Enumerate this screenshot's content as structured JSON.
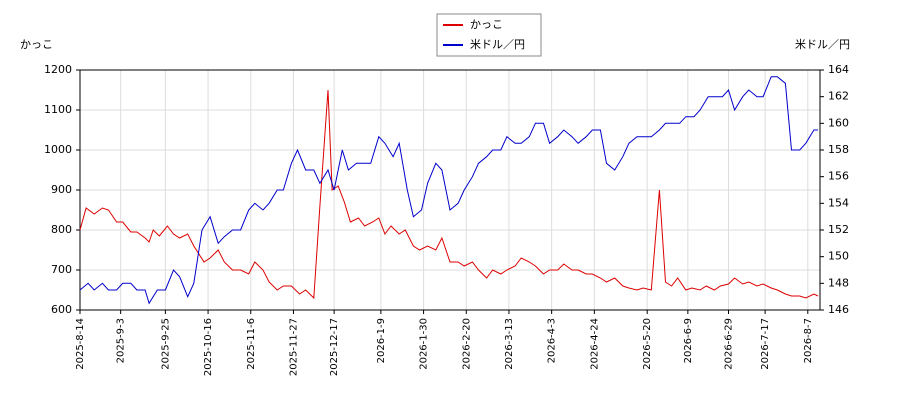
{
  "chart_data": {
    "type": "line",
    "ylabel": "かっこ",
    "y2label": "米ドル／円",
    "xlim": [
      "2025-8-14",
      "2026-8-13"
    ],
    "xticks": [
      "2025-8-14",
      "2025-9-3",
      "2025-9-25",
      "2025-10-16",
      "2025-11-6",
      "2025-11-27",
      "2025-12-17",
      "2026-1-9",
      "2026-1-30",
      "2026-2-20",
      "2026-3-13",
      "2026-4-3",
      "2026-4-24",
      "2026-5-20",
      "2026-6-9",
      "2026-6-29",
      "2026-7-17",
      "2026-8-7"
    ],
    "ylim": [
      600,
      1200
    ],
    "yticks": [
      600,
      700,
      800,
      900,
      1000,
      1100,
      1200
    ],
    "y2lim": [
      146,
      164
    ],
    "y2ticks": [
      146,
      148,
      150,
      152,
      154,
      156,
      158,
      160,
      162,
      164
    ],
    "grid": true,
    "legend": "top",
    "series": [
      {
        "name": "かっこ",
        "color": "#dd0000",
        "x": [
          "2025-8-14",
          "2025-8-17",
          "2025-8-21",
          "2025-8-25",
          "2025-8-28",
          "2025-9-1",
          "2025-9-4",
          "2025-9-8",
          "2025-9-11",
          "2025-9-15",
          "2025-9-17",
          "2025-9-19",
          "2025-9-22",
          "2025-9-26",
          "2025-9-29",
          "2025-10-2",
          "2025-10-6",
          "2025-10-9",
          "2025-10-14",
          "2025-10-17",
          "2025-10-21",
          "2025-10-24",
          "2025-10-28",
          "2025-11-1",
          "2025-11-5",
          "2025-11-8",
          "2025-11-12",
          "2025-11-15",
          "2025-11-19",
          "2025-11-22",
          "2025-11-26",
          "2025-11-30",
          "2025-12-3",
          "2025-12-7",
          "2025-12-10",
          "2025-12-14",
          "2025-12-16",
          "2025-12-19",
          "2025-12-22",
          "2025-12-25",
          "2025-12-29",
          "2026-1-1",
          "2026-1-5",
          "2026-1-8",
          "2026-1-11",
          "2026-1-14",
          "2026-1-18",
          "2026-1-21",
          "2026-1-25",
          "2026-1-28",
          "2026-2-1",
          "2026-2-5",
          "2026-2-8",
          "2026-2-12",
          "2026-2-16",
          "2026-2-19",
          "2026-2-23",
          "2026-2-26",
          "2026-3-2",
          "2026-3-5",
          "2026-3-9",
          "2026-3-12",
          "2026-3-16",
          "2026-3-19",
          "2026-3-23",
          "2026-3-26",
          "2026-3-30",
          "2026-4-2",
          "2026-4-6",
          "2026-4-9",
          "2026-4-13",
          "2026-4-16",
          "2026-4-20",
          "2026-4-23",
          "2026-4-27",
          "2026-4-30",
          "2026-5-4",
          "2026-5-8",
          "2026-5-11",
          "2026-5-15",
          "2026-5-18",
          "2026-5-22",
          "2026-5-26",
          "2026-5-29",
          "2026-6-1",
          "2026-6-4",
          "2026-6-8",
          "2026-6-11",
          "2026-6-15",
          "2026-6-18",
          "2026-6-22",
          "2026-6-25",
          "2026-6-29",
          "2026-7-2",
          "2026-7-6",
          "2026-7-9",
          "2026-7-13",
          "2026-7-16",
          "2026-7-20",
          "2026-7-23",
          "2026-7-27",
          "2026-7-30",
          "2026-8-3",
          "2026-8-6",
          "2026-8-10",
          "2026-8-12"
        ],
        "values": [
          800,
          855,
          840,
          855,
          850,
          820,
          820,
          795,
          795,
          780,
          770,
          800,
          785,
          810,
          790,
          780,
          790,
          760,
          720,
          730,
          750,
          720,
          700,
          700,
          690,
          720,
          700,
          670,
          650,
          660,
          660,
          640,
          650,
          630,
          860,
          1150,
          900,
          910,
          870,
          820,
          830,
          810,
          820,
          830,
          790,
          810,
          790,
          800,
          760,
          750,
          760,
          750,
          780,
          720,
          720,
          710,
          720,
          700,
          680,
          700,
          690,
          700,
          710,
          730,
          720,
          710,
          690,
          700,
          700,
          715,
          700,
          700,
          690,
          690,
          680,
          670,
          680,
          660,
          655,
          650,
          655,
          650,
          900,
          670,
          660,
          680,
          650,
          655,
          650,
          660,
          650,
          660,
          665,
          680,
          665,
          670,
          660,
          665,
          655,
          650,
          640,
          635,
          635,
          630,
          640,
          635
        ]
      },
      {
        "name": "米ドル／円",
        "color": "#0000cc",
        "axis": "y2",
        "x": [
          "2025-8-14",
          "2025-8-18",
          "2025-8-21",
          "2025-8-25",
          "2025-8-28",
          "2025-9-1",
          "2025-9-4",
          "2025-9-8",
          "2025-9-11",
          "2025-9-15",
          "2025-9-17",
          "2025-9-21",
          "2025-9-25",
          "2025-9-29",
          "2025-10-2",
          "2025-10-6",
          "2025-10-9",
          "2025-10-13",
          "2025-10-17",
          "2025-10-21",
          "2025-10-24",
          "2025-10-28",
          "2025-11-1",
          "2025-11-5",
          "2025-11-8",
          "2025-11-12",
          "2025-11-15",
          "2025-11-19",
          "2025-11-22",
          "2025-11-26",
          "2025-11-29",
          "2025-12-3",
          "2025-12-7",
          "2025-12-10",
          "2025-12-14",
          "2025-12-17",
          "2025-12-21",
          "2025-12-24",
          "2025-12-28",
          "2025-12-31",
          "2026-1-4",
          "2026-1-8",
          "2026-1-11",
          "2026-1-15",
          "2026-1-18",
          "2026-1-22",
          "2026-1-25",
          "2026-1-29",
          "2026-2-1",
          "2026-2-5",
          "2026-2-8",
          "2026-2-12",
          "2026-2-16",
          "2026-2-19",
          "2026-2-23",
          "2026-2-26",
          "2026-3-2",
          "2026-3-5",
          "2026-3-9",
          "2026-3-12",
          "2026-3-16",
          "2026-3-19",
          "2026-3-23",
          "2026-3-26",
          "2026-3-30",
          "2026-4-2",
          "2026-4-6",
          "2026-4-9",
          "2026-4-13",
          "2026-4-16",
          "2026-4-20",
          "2026-4-23",
          "2026-4-27",
          "2026-4-30",
          "2026-5-4",
          "2026-5-8",
          "2026-5-11",
          "2026-5-15",
          "2026-5-18",
          "2026-5-22",
          "2026-5-26",
          "2026-5-29",
          "2026-6-1",
          "2026-6-5",
          "2026-6-8",
          "2026-6-12",
          "2026-6-15",
          "2026-6-19",
          "2026-6-22",
          "2026-6-26",
          "2026-6-29",
          "2026-7-2",
          "2026-7-6",
          "2026-7-9",
          "2026-7-13",
          "2026-7-16",
          "2026-7-20",
          "2026-7-23",
          "2026-7-27",
          "2026-7-30",
          "2026-8-3",
          "2026-8-6",
          "2026-8-10",
          "2026-8-12"
        ],
        "values": [
          147.5,
          148,
          147.5,
          148,
          147.5,
          147.5,
          148,
          148,
          147.5,
          147.5,
          146.5,
          147.5,
          147.5,
          149,
          148.5,
          147,
          148,
          152,
          153,
          151,
          151.5,
          152,
          152,
          153.5,
          154,
          153.5,
          154,
          155,
          155,
          157,
          158,
          156.5,
          156.5,
          155.5,
          156.5,
          155,
          158,
          156.5,
          157,
          157,
          157,
          159,
          158.5,
          157.5,
          158.5,
          155,
          153,
          153.5,
          155.5,
          157,
          156.5,
          153.5,
          154,
          155,
          156,
          157,
          157.5,
          158,
          158,
          159,
          158.5,
          158.5,
          159,
          160,
          160,
          158.5,
          159,
          159.5,
          159,
          158.5,
          159,
          159.5,
          159.5,
          157,
          156.5,
          157.5,
          158.5,
          159,
          159,
          159,
          159.5,
          160,
          160,
          160,
          160.5,
          160.5,
          161,
          162,
          162,
          162,
          162.5,
          161,
          162,
          162.5,
          162,
          162,
          163.5,
          163.5,
          163,
          158,
          158,
          158.5,
          159.5,
          159.5
        ]
      }
    ]
  }
}
